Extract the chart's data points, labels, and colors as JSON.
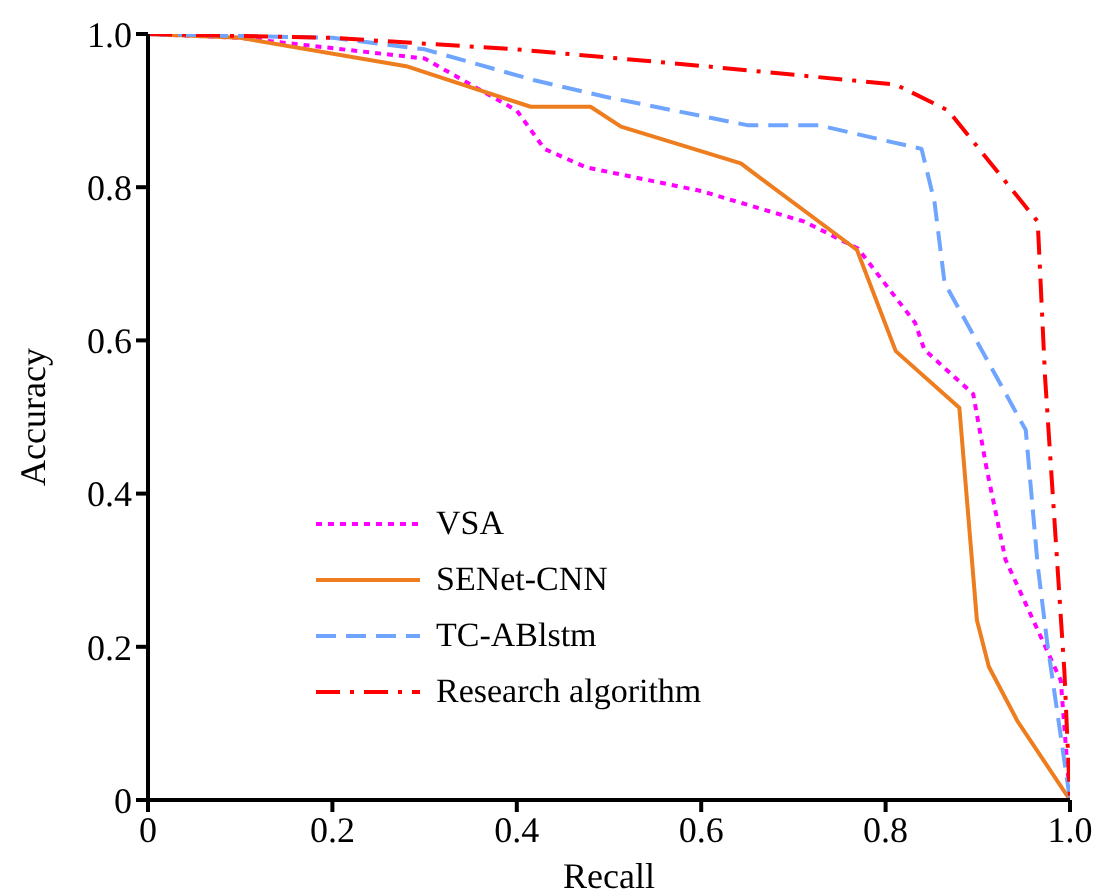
{
  "chart_data": {
    "type": "line",
    "xlabel": "Recall",
    "ylabel": "Accuracy",
    "xlim": [
      0,
      1
    ],
    "ylim": [
      0,
      1
    ],
    "xticks": [
      {
        "value": 0,
        "label": "0"
      },
      0.2,
      0.4,
      0.6,
      0.8,
      {
        "value": 1,
        "label": "1.0"
      }
    ],
    "yticks": [
      {
        "value": 0,
        "label": "0"
      },
      0.2,
      0.4,
      0.6,
      0.8,
      {
        "value": 1,
        "label": "1.0"
      }
    ],
    "grid": false,
    "legend": "bottom left",
    "marker": "none",
    "series": [
      {
        "name": "VSA",
        "color": "#ff00ff",
        "line_style": "dotted",
        "x": [
          0,
          0.1,
          0.3,
          0.4,
          0.43,
          0.475,
          0.6,
          0.712,
          0.77,
          0.832,
          0.842,
          0.895,
          0.91,
          0.93,
          0.99,
          1.0
        ],
        "values": [
          1.0,
          0.995,
          0.968,
          0.9,
          0.85,
          0.826,
          0.795,
          0.755,
          0.72,
          0.623,
          0.588,
          0.53,
          0.43,
          0.314,
          0.156,
          0
        ]
      },
      {
        "name": "SENet-CNN",
        "color": "#ed7d1f",
        "line_style": "solid",
        "x": [
          0,
          0.1,
          0.28,
          0.415,
          0.48,
          0.513,
          0.643,
          0.769,
          0.811,
          0.88,
          0.899,
          0.912,
          0.943,
          1.0
        ],
        "values": [
          1.0,
          0.995,
          0.958,
          0.905,
          0.905,
          0.879,
          0.831,
          0.718,
          0.586,
          0.512,
          0.235,
          0.174,
          0.103,
          0
        ]
      },
      {
        "name": "TC-ABlstm",
        "color": "#6fa4ff",
        "line_style": "dashed",
        "x": [
          0,
          0.2,
          0.3,
          0.418,
          0.496,
          0.65,
          0.727,
          0.839,
          0.853,
          0.864,
          0.952,
          0.965,
          0.975,
          1.0
        ],
        "values": [
          1.0,
          0.995,
          0.98,
          0.94,
          0.918,
          0.881,
          0.881,
          0.85,
          0.781,
          0.675,
          0.483,
          0.306,
          0.208,
          0
        ]
      },
      {
        "name": "Research algorithm",
        "color": "#ff0000",
        "line_style": "dashdot",
        "x": [
          0,
          0.2,
          0.4,
          0.586,
          0.811,
          0.868,
          0.965,
          0.973,
          0.994,
          1.0
        ],
        "values": [
          1.0,
          0.995,
          0.98,
          0.96,
          0.934,
          0.9,
          0.755,
          0.551,
          0.166,
          0
        ]
      }
    ]
  }
}
